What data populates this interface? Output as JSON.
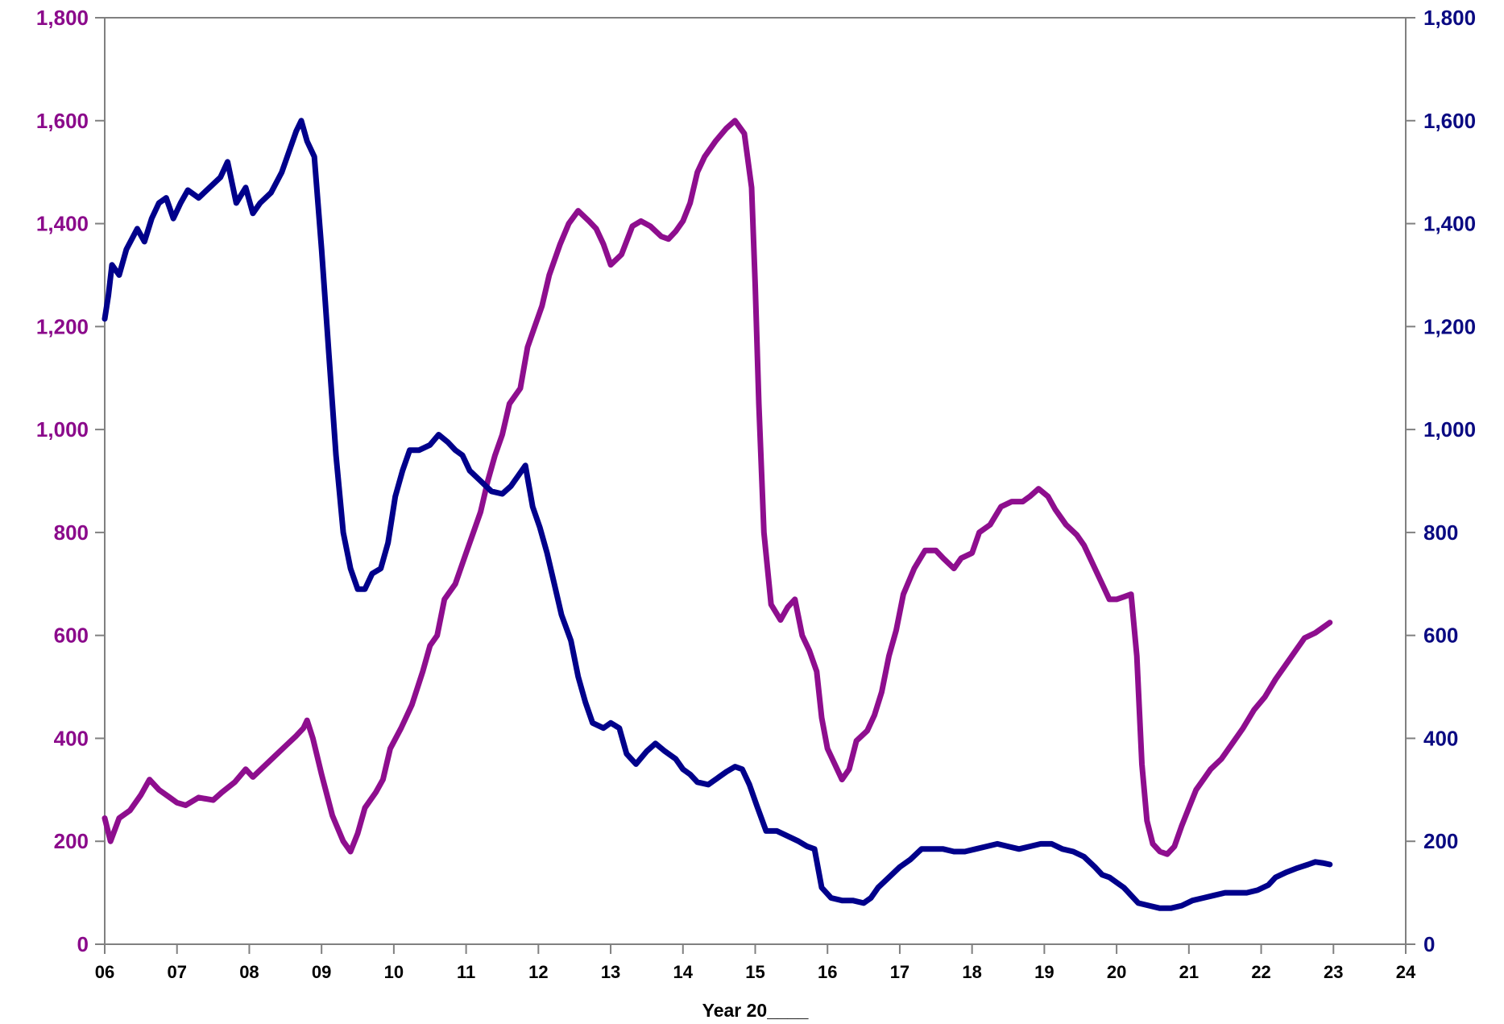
{
  "chart_data": {
    "type": "line",
    "title": "",
    "xlabel": "Year 20____",
    "ylabel_left": "",
    "ylabel_right": "",
    "xlim": [
      6,
      24
    ],
    "ylim": [
      0,
      1800
    ],
    "x_ticks": [
      6,
      7,
      8,
      9,
      10,
      11,
      12,
      13,
      14,
      15,
      16,
      17,
      18,
      19,
      20,
      21,
      22,
      23,
      24
    ],
    "x_tick_labels": [
      "06",
      "07",
      "08",
      "09",
      "10",
      "11",
      "12",
      "13",
      "14",
      "15",
      "16",
      "17",
      "18",
      "19",
      "20",
      "21",
      "22",
      "23",
      "24"
    ],
    "y_ticks": [
      0,
      200,
      400,
      600,
      800,
      1000,
      1200,
      1400,
      1600,
      1800
    ],
    "y_tick_labels": [
      "0",
      "200",
      "400",
      "600",
      "800",
      "1,000",
      "1,200",
      "1,400",
      "1,600",
      "1,800"
    ],
    "grid": false,
    "legend": "none",
    "colors": {
      "magenta_axis": "#8B0A8B",
      "navy_axis": "#0A0A82",
      "magenta_series": "#8E0E8E",
      "navy_series": "#00008B",
      "frame": "#808080"
    },
    "series": [
      {
        "color": "#8E0E8E",
        "axis": "left",
        "points": [
          [
            6.0,
            245
          ],
          [
            6.08,
            200
          ],
          [
            6.2,
            245
          ],
          [
            6.35,
            260
          ],
          [
            6.5,
            290
          ],
          [
            6.62,
            320
          ],
          [
            6.75,
            300
          ],
          [
            6.9,
            285
          ],
          [
            7.0,
            275
          ],
          [
            7.12,
            270
          ],
          [
            7.3,
            285
          ],
          [
            7.5,
            280
          ],
          [
            7.62,
            295
          ],
          [
            7.8,
            315
          ],
          [
            7.95,
            340
          ],
          [
            8.05,
            325
          ],
          [
            8.2,
            345
          ],
          [
            8.35,
            365
          ],
          [
            8.5,
            385
          ],
          [
            8.65,
            405
          ],
          [
            8.75,
            420
          ],
          [
            8.8,
            435
          ],
          [
            8.88,
            400
          ],
          [
            9.0,
            330
          ],
          [
            9.15,
            250
          ],
          [
            9.3,
            200
          ],
          [
            9.4,
            180
          ],
          [
            9.5,
            215
          ],
          [
            9.6,
            265
          ],
          [
            9.75,
            295
          ],
          [
            9.85,
            320
          ],
          [
            9.95,
            380
          ],
          [
            10.1,
            420
          ],
          [
            10.25,
            465
          ],
          [
            10.4,
            530
          ],
          [
            10.5,
            580
          ],
          [
            10.6,
            600
          ],
          [
            10.7,
            670
          ],
          [
            10.85,
            700
          ],
          [
            11.0,
            760
          ],
          [
            11.1,
            800
          ],
          [
            11.2,
            840
          ],
          [
            11.3,
            900
          ],
          [
            11.4,
            950
          ],
          [
            11.5,
            990
          ],
          [
            11.6,
            1050
          ],
          [
            11.75,
            1080
          ],
          [
            11.85,
            1160
          ],
          [
            11.95,
            1200
          ],
          [
            12.05,
            1240
          ],
          [
            12.15,
            1300
          ],
          [
            12.3,
            1360
          ],
          [
            12.42,
            1400
          ],
          [
            12.55,
            1425
          ],
          [
            12.7,
            1405
          ],
          [
            12.8,
            1390
          ],
          [
            12.9,
            1360
          ],
          [
            13.0,
            1320
          ],
          [
            13.15,
            1340
          ],
          [
            13.3,
            1395
          ],
          [
            13.42,
            1405
          ],
          [
            13.55,
            1395
          ],
          [
            13.7,
            1375
          ],
          [
            13.8,
            1370
          ],
          [
            13.9,
            1385
          ],
          [
            14.0,
            1405
          ],
          [
            14.1,
            1440
          ],
          [
            14.2,
            1500
          ],
          [
            14.3,
            1530
          ],
          [
            14.45,
            1560
          ],
          [
            14.6,
            1585
          ],
          [
            14.72,
            1600
          ],
          [
            14.85,
            1575
          ],
          [
            14.95,
            1470
          ],
          [
            15.0,
            1280
          ],
          [
            15.05,
            1050
          ],
          [
            15.12,
            800
          ],
          [
            15.22,
            660
          ],
          [
            15.35,
            630
          ],
          [
            15.45,
            655
          ],
          [
            15.55,
            670
          ],
          [
            15.65,
            600
          ],
          [
            15.75,
            570
          ],
          [
            15.85,
            530
          ],
          [
            15.92,
            440
          ],
          [
            16.0,
            380
          ],
          [
            16.1,
            350
          ],
          [
            16.2,
            320
          ],
          [
            16.3,
            340
          ],
          [
            16.4,
            395
          ],
          [
            16.55,
            415
          ],
          [
            16.65,
            445
          ],
          [
            16.75,
            490
          ],
          [
            16.85,
            560
          ],
          [
            16.95,
            610
          ],
          [
            17.05,
            680
          ],
          [
            17.2,
            730
          ],
          [
            17.35,
            765
          ],
          [
            17.5,
            765
          ],
          [
            17.6,
            750
          ],
          [
            17.75,
            730
          ],
          [
            17.85,
            750
          ],
          [
            18.0,
            760
          ],
          [
            18.1,
            800
          ],
          [
            18.25,
            815
          ],
          [
            18.4,
            850
          ],
          [
            18.55,
            860
          ],
          [
            18.7,
            860
          ],
          [
            18.8,
            870
          ],
          [
            18.92,
            885
          ],
          [
            19.05,
            870
          ],
          [
            19.15,
            845
          ],
          [
            19.3,
            815
          ],
          [
            19.45,
            795
          ],
          [
            19.55,
            775
          ],
          [
            19.7,
            730
          ],
          [
            19.8,
            700
          ],
          [
            19.9,
            670
          ],
          [
            20.0,
            670
          ],
          [
            20.1,
            675
          ],
          [
            20.2,
            680
          ],
          [
            20.28,
            560
          ],
          [
            20.35,
            350
          ],
          [
            20.42,
            240
          ],
          [
            20.5,
            195
          ],
          [
            20.6,
            180
          ],
          [
            20.7,
            175
          ],
          [
            20.8,
            190
          ],
          [
            20.9,
            230
          ],
          [
            21.0,
            265
          ],
          [
            21.1,
            300
          ],
          [
            21.2,
            320
          ],
          [
            21.3,
            340
          ],
          [
            21.45,
            360
          ],
          [
            21.6,
            390
          ],
          [
            21.75,
            420
          ],
          [
            21.9,
            455
          ],
          [
            22.05,
            480
          ],
          [
            22.2,
            515
          ],
          [
            22.35,
            545
          ],
          [
            22.5,
            575
          ],
          [
            22.6,
            595
          ],
          [
            22.75,
            605
          ],
          [
            22.85,
            615
          ],
          [
            22.95,
            625
          ]
        ]
      },
      {
        "color": "#00008B",
        "axis": "right",
        "points": [
          [
            6.0,
            1215
          ],
          [
            6.05,
            1260
          ],
          [
            6.1,
            1320
          ],
          [
            6.2,
            1300
          ],
          [
            6.3,
            1350
          ],
          [
            6.45,
            1390
          ],
          [
            6.55,
            1365
          ],
          [
            6.65,
            1410
          ],
          [
            6.75,
            1440
          ],
          [
            6.85,
            1450
          ],
          [
            6.95,
            1410
          ],
          [
            7.05,
            1440
          ],
          [
            7.15,
            1465
          ],
          [
            7.3,
            1450
          ],
          [
            7.45,
            1470
          ],
          [
            7.6,
            1490
          ],
          [
            7.7,
            1520
          ],
          [
            7.82,
            1440
          ],
          [
            7.95,
            1470
          ],
          [
            8.05,
            1420
          ],
          [
            8.15,
            1440
          ],
          [
            8.3,
            1460
          ],
          [
            8.45,
            1500
          ],
          [
            8.55,
            1540
          ],
          [
            8.65,
            1580
          ],
          [
            8.72,
            1600
          ],
          [
            8.8,
            1560
          ],
          [
            8.9,
            1530
          ],
          [
            9.0,
            1350
          ],
          [
            9.05,
            1250
          ],
          [
            9.1,
            1150
          ],
          [
            9.2,
            950
          ],
          [
            9.3,
            800
          ],
          [
            9.4,
            730
          ],
          [
            9.5,
            690
          ],
          [
            9.6,
            690
          ],
          [
            9.7,
            720
          ],
          [
            9.82,
            730
          ],
          [
            9.92,
            780
          ],
          [
            10.02,
            870
          ],
          [
            10.12,
            920
          ],
          [
            10.22,
            960
          ],
          [
            10.35,
            960
          ],
          [
            10.5,
            970
          ],
          [
            10.62,
            990
          ],
          [
            10.75,
            975
          ],
          [
            10.85,
            960
          ],
          [
            10.95,
            950
          ],
          [
            11.05,
            920
          ],
          [
            11.2,
            900
          ],
          [
            11.35,
            880
          ],
          [
            11.5,
            875
          ],
          [
            11.62,
            890
          ],
          [
            11.72,
            910
          ],
          [
            11.82,
            930
          ],
          [
            11.92,
            850
          ],
          [
            12.02,
            810
          ],
          [
            12.12,
            760
          ],
          [
            12.22,
            700
          ],
          [
            12.32,
            640
          ],
          [
            12.45,
            590
          ],
          [
            12.55,
            520
          ],
          [
            12.65,
            470
          ],
          [
            12.75,
            430
          ],
          [
            12.9,
            420
          ],
          [
            13.0,
            430
          ],
          [
            13.12,
            420
          ],
          [
            13.22,
            370
          ],
          [
            13.35,
            350
          ],
          [
            13.5,
            375
          ],
          [
            13.62,
            390
          ],
          [
            13.75,
            375
          ],
          [
            13.9,
            360
          ],
          [
            14.0,
            340
          ],
          [
            14.1,
            330
          ],
          [
            14.2,
            315
          ],
          [
            14.35,
            310
          ],
          [
            14.5,
            325
          ],
          [
            14.6,
            335
          ],
          [
            14.72,
            345
          ],
          [
            14.82,
            340
          ],
          [
            14.92,
            310
          ],
          [
            15.02,
            270
          ],
          [
            15.15,
            220
          ],
          [
            15.3,
            220
          ],
          [
            15.45,
            210
          ],
          [
            15.6,
            200
          ],
          [
            15.72,
            190
          ],
          [
            15.82,
            185
          ],
          [
            15.92,
            110
          ],
          [
            16.05,
            90
          ],
          [
            16.2,
            85
          ],
          [
            16.35,
            85
          ],
          [
            16.5,
            80
          ],
          [
            16.6,
            90
          ],
          [
            16.7,
            110
          ],
          [
            16.85,
            130
          ],
          [
            17.0,
            150
          ],
          [
            17.15,
            165
          ],
          [
            17.3,
            185
          ],
          [
            17.45,
            185
          ],
          [
            17.6,
            185
          ],
          [
            17.75,
            180
          ],
          [
            17.9,
            180
          ],
          [
            18.05,
            185
          ],
          [
            18.2,
            190
          ],
          [
            18.35,
            195
          ],
          [
            18.5,
            190
          ],
          [
            18.65,
            185
          ],
          [
            18.8,
            190
          ],
          [
            18.95,
            195
          ],
          [
            19.1,
            195
          ],
          [
            19.25,
            185
          ],
          [
            19.4,
            180
          ],
          [
            19.55,
            170
          ],
          [
            19.7,
            150
          ],
          [
            19.8,
            135
          ],
          [
            19.9,
            130
          ],
          [
            20.0,
            120
          ],
          [
            20.1,
            110
          ],
          [
            20.2,
            95
          ],
          [
            20.3,
            80
          ],
          [
            20.45,
            75
          ],
          [
            20.6,
            70
          ],
          [
            20.75,
            70
          ],
          [
            20.9,
            75
          ],
          [
            21.05,
            85
          ],
          [
            21.2,
            90
          ],
          [
            21.35,
            95
          ],
          [
            21.5,
            100
          ],
          [
            21.65,
            100
          ],
          [
            21.8,
            100
          ],
          [
            21.95,
            105
          ],
          [
            22.1,
            115
          ],
          [
            22.2,
            130
          ],
          [
            22.35,
            140
          ],
          [
            22.5,
            148
          ],
          [
            22.65,
            155
          ],
          [
            22.75,
            160
          ],
          [
            22.85,
            158
          ],
          [
            22.95,
            155
          ]
        ]
      }
    ]
  }
}
